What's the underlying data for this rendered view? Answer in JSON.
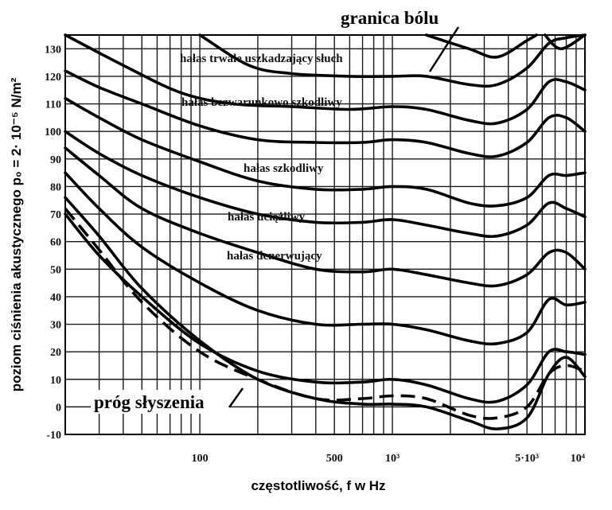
{
  "chart_data": {
    "type": "line",
    "xlabel": "częstotliwość, f w Hz",
    "ylabel": "poziom ciśnienia akustycznego p₀ = 2· 10⁻⁵ N/m²",
    "x_scale": "log",
    "xlim": [
      20,
      10000
    ],
    "ylim": [
      -10,
      135
    ],
    "x_tick_labels": [
      {
        "value": 100,
        "label": "100"
      },
      {
        "value": 500,
        "label": "500"
      },
      {
        "value": 1000,
        "label": "10³"
      },
      {
        "value": 5000,
        "label": "5·10³"
      },
      {
        "value": 10000,
        "label": "10⁴"
      }
    ],
    "y_ticks": [
      -10,
      0,
      10,
      20,
      30,
      40,
      50,
      60,
      70,
      80,
      90,
      100,
      110,
      120,
      130
    ],
    "grid": true,
    "series": [
      {
        "style": "solid",
        "points": [
          [
            20,
            76
          ],
          [
            30,
            62
          ],
          [
            50,
            43
          ],
          [
            100,
            24
          ],
          [
            200,
            10
          ],
          [
            400,
            3
          ],
          [
            700,
            1
          ],
          [
            1000,
            1
          ],
          [
            1500,
            0
          ],
          [
            2500,
            -5
          ],
          [
            3500,
            -8
          ],
          [
            5000,
            -4
          ],
          [
            6500,
            12
          ],
          [
            8000,
            18
          ],
          [
            10000,
            11
          ]
        ]
      },
      {
        "style": "dashed",
        "points": [
          [
            20,
            72
          ],
          [
            30,
            57
          ],
          [
            50,
            38
          ],
          [
            100,
            20
          ],
          [
            200,
            10
          ],
          [
            400,
            3
          ],
          [
            700,
            3
          ],
          [
            1000,
            4
          ],
          [
            1500,
            3
          ],
          [
            2500,
            -3
          ],
          [
            3500,
            -4
          ],
          [
            5000,
            0
          ],
          [
            6500,
            12
          ],
          [
            8000,
            15
          ],
          [
            10000,
            13
          ]
        ]
      },
      {
        "style": "solid",
        "points": [
          [
            20,
            70
          ],
          [
            30,
            55
          ],
          [
            50,
            40
          ],
          [
            100,
            23
          ],
          [
            200,
            13
          ],
          [
            400,
            9
          ],
          [
            700,
            9
          ],
          [
            1000,
            10
          ],
          [
            1500,
            8
          ],
          [
            2500,
            3
          ],
          [
            3500,
            2
          ],
          [
            5000,
            8
          ],
          [
            6500,
            20
          ],
          [
            8000,
            20
          ],
          [
            10000,
            19
          ]
        ]
      },
      {
        "style": "solid",
        "points": [
          [
            20,
            85
          ],
          [
            30,
            72
          ],
          [
            50,
            58
          ],
          [
            100,
            45
          ],
          [
            200,
            35
          ],
          [
            400,
            30
          ],
          [
            700,
            30
          ],
          [
            1000,
            30
          ],
          [
            1500,
            28
          ],
          [
            2500,
            24
          ],
          [
            3500,
            23
          ],
          [
            5000,
            27
          ],
          [
            6500,
            39
          ],
          [
            8000,
            37
          ],
          [
            10000,
            38
          ]
        ]
      },
      {
        "style": "solid",
        "points": [
          [
            20,
            94
          ],
          [
            30,
            84
          ],
          [
            50,
            72
          ],
          [
            100,
            63
          ],
          [
            200,
            56
          ],
          [
            400,
            50
          ],
          [
            700,
            49
          ],
          [
            1000,
            50
          ],
          [
            1500,
            48
          ],
          [
            2500,
            45
          ],
          [
            3500,
            44
          ],
          [
            5000,
            48
          ],
          [
            6500,
            56
          ],
          [
            8000,
            56
          ],
          [
            10000,
            50
          ]
        ]
      },
      {
        "style": "solid",
        "points": [
          [
            20,
            100
          ],
          [
            30,
            92
          ],
          [
            50,
            84
          ],
          [
            100,
            76
          ],
          [
            200,
            70
          ],
          [
            400,
            67
          ],
          [
            700,
            67
          ],
          [
            1000,
            68
          ],
          [
            1500,
            66
          ],
          [
            2500,
            63
          ],
          [
            3500,
            62
          ],
          [
            5000,
            66
          ],
          [
            6500,
            74
          ],
          [
            8000,
            72
          ],
          [
            10000,
            69
          ]
        ]
      },
      {
        "style": "solid",
        "points": [
          [
            20,
            112
          ],
          [
            30,
            105
          ],
          [
            50,
            97
          ],
          [
            100,
            89
          ],
          [
            200,
            82
          ],
          [
            400,
            79
          ],
          [
            700,
            79
          ],
          [
            1000,
            80
          ],
          [
            1500,
            79
          ],
          [
            2500,
            74
          ],
          [
            3500,
            73
          ],
          [
            5000,
            76
          ],
          [
            6500,
            84
          ],
          [
            8000,
            84
          ],
          [
            10000,
            85
          ]
        ]
      },
      {
        "style": "solid",
        "points": [
          [
            20,
            122
          ],
          [
            30,
            116
          ],
          [
            50,
            110
          ],
          [
            100,
            102
          ],
          [
            200,
            97
          ],
          [
            400,
            96
          ],
          [
            700,
            96
          ],
          [
            1000,
            97
          ],
          [
            1500,
            96
          ],
          [
            2500,
            92
          ],
          [
            3500,
            91
          ],
          [
            5000,
            96
          ],
          [
            6500,
            105
          ],
          [
            8000,
            105
          ],
          [
            10000,
            100
          ]
        ]
      },
      {
        "style": "solid",
        "points": [
          [
            20,
            135
          ],
          [
            40,
            124
          ],
          [
            80,
            114
          ],
          [
            150,
            110
          ],
          [
            300,
            109
          ],
          [
            600,
            108
          ],
          [
            1000,
            109
          ],
          [
            1500,
            108
          ],
          [
            2500,
            104
          ],
          [
            3500,
            103
          ],
          [
            5000,
            108
          ],
          [
            6500,
            118
          ],
          [
            8000,
            118
          ],
          [
            10000,
            115
          ]
        ]
      },
      {
        "style": "solid",
        "points": [
          [
            100,
            135
          ],
          [
            180,
            124
          ],
          [
            300,
            121
          ],
          [
            600,
            120
          ],
          [
            1000,
            120
          ],
          [
            1500,
            120
          ],
          [
            2500,
            117
          ],
          [
            3500,
            117
          ],
          [
            5000,
            123
          ],
          [
            6500,
            132
          ],
          [
            8000,
            134
          ],
          [
            10000,
            135
          ]
        ]
      },
      {
        "style": "solid",
        "points": [
          [
            1500,
            135
          ],
          [
            2500,
            130
          ],
          [
            3500,
            127
          ],
          [
            5000,
            133
          ],
          [
            5600,
            135
          ]
        ]
      },
      {
        "style": "solid",
        "points": [
          [
            6200,
            135
          ],
          [
            7500,
            130
          ],
          [
            10000,
            135
          ]
        ]
      }
    ],
    "annotations": [
      {
        "id": "pain",
        "text": "granica bólu"
      },
      {
        "id": "hearing",
        "text": "próg słyszenia"
      },
      {
        "id": "l1",
        "text": "hałas trwale uszkadzający  słuch"
      },
      {
        "id": "l2",
        "text": "hałas bezwarunkowo szkodliwy"
      },
      {
        "id": "l3",
        "text": "hałas szkodliwy"
      },
      {
        "id": "l4",
        "text": "hałas uciążliwy"
      },
      {
        "id": "l5",
        "text": "hałas denerwujący"
      }
    ]
  }
}
